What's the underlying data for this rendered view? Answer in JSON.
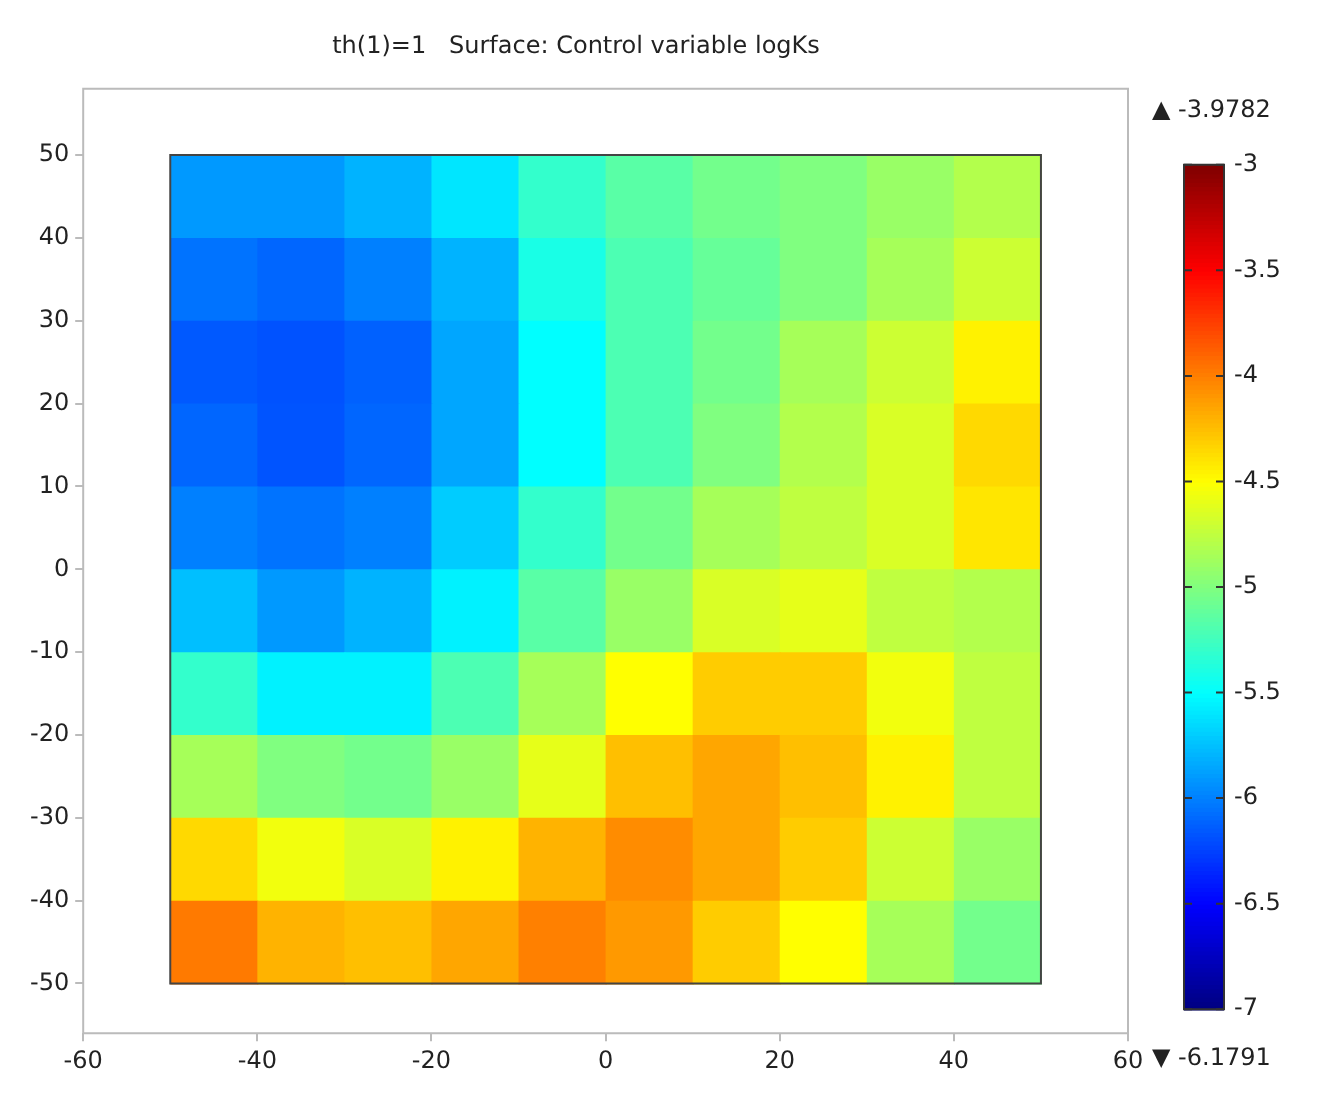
{
  "chart_data": {
    "type": "heatmap",
    "title": "th(1)=1   Surface: Control variable logKs",
    "x": [
      -45,
      -35,
      -25,
      -15,
      -5,
      5,
      15,
      25,
      35,
      45
    ],
    "y": [
      45,
      35,
      25,
      15,
      5,
      -5,
      -15,
      -25,
      -35,
      -45
    ],
    "cells": [
      [
        -5.9,
        -5.9,
        -5.8,
        -5.6,
        -5.3,
        -5.15,
        -5.05,
        -5.0,
        -4.9,
        -4.8
      ],
      [
        -6.05,
        -6.1,
        -6.0,
        -5.8,
        -5.4,
        -5.2,
        -5.1,
        -5.0,
        -4.85,
        -4.7
      ],
      [
        -6.15,
        -6.18,
        -6.12,
        -5.85,
        -5.5,
        -5.2,
        -5.05,
        -4.85,
        -4.7,
        -4.45
      ],
      [
        -6.1,
        -6.17,
        -6.1,
        -5.85,
        -5.5,
        -5.2,
        -5.0,
        -4.8,
        -4.65,
        -4.35
      ],
      [
        -6.0,
        -6.05,
        -6.0,
        -5.7,
        -5.3,
        -5.05,
        -4.85,
        -4.75,
        -4.65,
        -4.4
      ],
      [
        -5.75,
        -5.9,
        -5.8,
        -5.55,
        -5.15,
        -4.9,
        -4.65,
        -4.6,
        -4.75,
        -4.8
      ],
      [
        -5.3,
        -5.55,
        -5.55,
        -5.2,
        -4.85,
        -4.5,
        -4.3,
        -4.3,
        -4.55,
        -4.75
      ],
      [
        -4.85,
        -5.0,
        -5.05,
        -4.9,
        -4.6,
        -4.25,
        -4.15,
        -4.25,
        -4.45,
        -4.75
      ],
      [
        -4.35,
        -4.55,
        -4.65,
        -4.45,
        -4.2,
        -4.05,
        -4.15,
        -4.3,
        -4.7,
        -4.9
      ],
      [
        -3.98,
        -4.2,
        -4.25,
        -4.15,
        -4.0,
        -4.1,
        -4.3,
        -4.5,
        -4.85,
        -5.05
      ]
    ],
    "xlim": [
      -60,
      60
    ],
    "xticks": [
      -60,
      -40,
      -20,
      0,
      20,
      40,
      60
    ],
    "ylim": [
      -56,
      58
    ],
    "yticks": [
      -50,
      -40,
      -30,
      -20,
      -10,
      0,
      10,
      20,
      30,
      40,
      50
    ],
    "clim": [
      -7,
      -3
    ],
    "cticks": [
      -7,
      -6.5,
      -6,
      -5.5,
      -5,
      -4.5,
      -4,
      -3.5,
      -3
    ],
    "annotations": [
      "▲ -3.9782",
      "▼ -6.1791"
    ]
  }
}
